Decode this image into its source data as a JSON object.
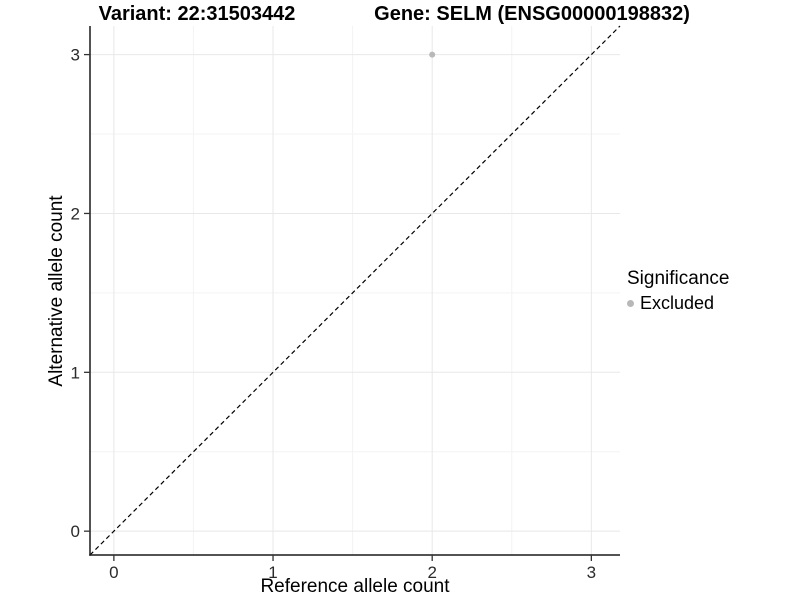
{
  "titles": {
    "variant": "Variant: 22:31503442",
    "gene": "Gene: SELM (ENSG00000198832)"
  },
  "legend": {
    "title": "Significance",
    "items": [
      {
        "label": "Excluded",
        "color": "#b8b8b8"
      }
    ]
  },
  "chart_data": {
    "type": "scatter",
    "xlabel": "Reference allele count",
    "ylabel": "Alternative allele count",
    "xlim": [
      -0.15,
      3.18
    ],
    "ylim": [
      -0.15,
      3.18
    ],
    "xticks": [
      0,
      1,
      2,
      3
    ],
    "yticks": [
      0,
      1,
      2,
      3
    ],
    "minor_xticks": [
      0.5,
      1.5,
      2.5
    ],
    "minor_yticks": [
      0.5,
      1.5,
      2.5
    ],
    "grid": "on",
    "legend_position": "right",
    "series": [
      {
        "name": "Excluded",
        "color": "#b8b8b8",
        "points": [
          {
            "x": 2,
            "y": 3
          }
        ]
      }
    ],
    "reference_line": {
      "kind": "identity",
      "slope": 1,
      "intercept": 0,
      "style": "dashed",
      "color": "#000000"
    }
  },
  "colors": {
    "background": "#ffffff",
    "grid_major": "#e8e8e8",
    "grid_minor": "#f3f3f3",
    "axis_line": "#1a1a1a",
    "tick_mark": "#333333",
    "tick_label": "#2b2b2b",
    "point": "#b8b8b8"
  }
}
